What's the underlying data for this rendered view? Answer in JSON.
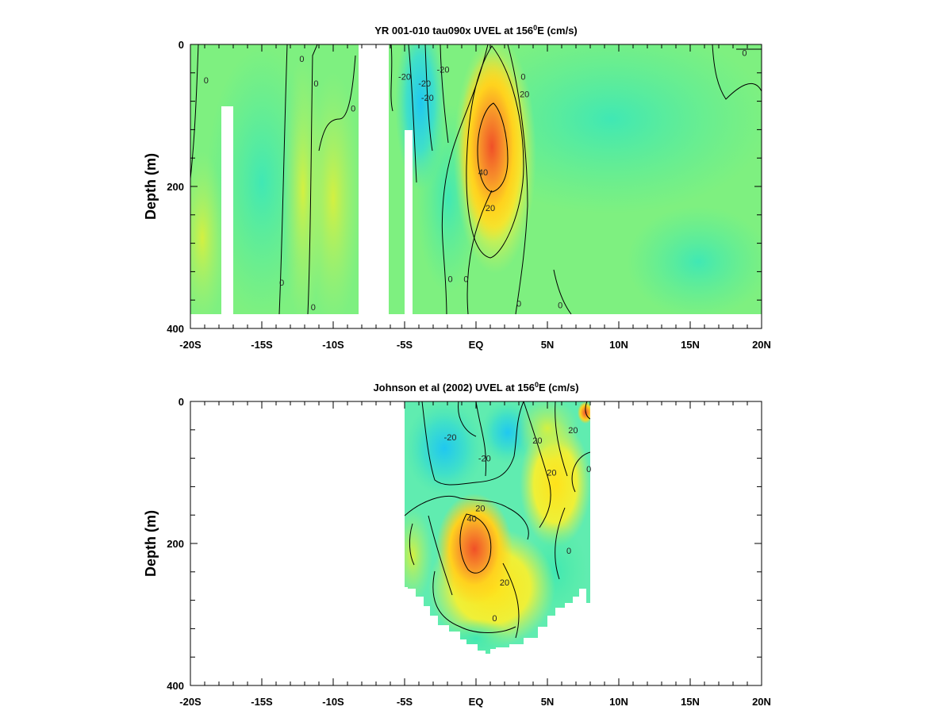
{
  "chart_data": [
    {
      "type": "heatmap",
      "title_prefix": "YR 001-010 tau090x UVEL at 156",
      "title_sup": "0",
      "title_suffix": "E (cm/s)",
      "ylabel": "Depth (m)",
      "xlim": [
        -20,
        20
      ],
      "ylim": [
        0,
        400
      ],
      "x_ticks": [
        "-20S",
        "-15S",
        "-10S",
        "-5S",
        "EQ",
        "5N",
        "10N",
        "15N",
        "20N"
      ],
      "x_tick_values": [
        -20,
        -15,
        -10,
        -5,
        0,
        5,
        10,
        15,
        20
      ],
      "y_ticks": [
        "0",
        "200",
        "400"
      ],
      "y_tick_values": [
        0,
        200,
        400
      ],
      "data_depth_max": 380,
      "gaps_lat": [
        [
          -17.8,
          -17.0
        ],
        [
          -8.2,
          -6.0
        ],
        [
          -4.8,
          -4.2
        ]
      ],
      "gaps_depth_start": [
        90,
        0,
        120
      ],
      "contour_labels": [
        {
          "text": "0",
          "lat": -18.9,
          "depth": 50
        },
        {
          "text": "0",
          "lat": -12.2,
          "depth": 20
        },
        {
          "text": "0",
          "lat": -11.2,
          "depth": 55
        },
        {
          "text": "0",
          "lat": -8.6,
          "depth": 90
        },
        {
          "text": "0",
          "lat": -13.6,
          "depth": 335
        },
        {
          "text": "0",
          "lat": -11.4,
          "depth": 370
        },
        {
          "text": "-20",
          "lat": -5.0,
          "depth": 45
        },
        {
          "text": "-20",
          "lat": -3.6,
          "depth": 55
        },
        {
          "text": "-20",
          "lat": -3.4,
          "depth": 75
        },
        {
          "text": "-20",
          "lat": -2.3,
          "depth": 35
        },
        {
          "text": "20",
          "lat": 1.0,
          "depth": 230
        },
        {
          "text": "20",
          "lat": 3.4,
          "depth": 70
        },
        {
          "text": "40",
          "lat": 0.5,
          "depth": 180
        },
        {
          "text": "0",
          "lat": 3.3,
          "depth": 45
        },
        {
          "text": "0",
          "lat": -1.8,
          "depth": 330
        },
        {
          "text": "0",
          "lat": -0.7,
          "depth": 330
        },
        {
          "text": "0",
          "lat": 3.0,
          "depth": 365
        },
        {
          "text": "0",
          "lat": 5.9,
          "depth": 367
        },
        {
          "text": "0",
          "lat": 18.8,
          "depth": 12
        }
      ]
    },
    {
      "type": "heatmap",
      "title_prefix": "Johnson et al (2002) UVEL at 156",
      "title_sup": "0",
      "title_suffix": "E (cm/s)",
      "ylabel": "Depth (m)",
      "xlim": [
        -20,
        20
      ],
      "ylim": [
        0,
        400
      ],
      "x_ticks": [
        "-20S",
        "-15S",
        "-10S",
        "-5S",
        "EQ",
        "5N",
        "10N",
        "15N",
        "20N"
      ],
      "x_tick_values": [
        -20,
        -15,
        -10,
        -5,
        0,
        5,
        10,
        15,
        20
      ],
      "y_ticks": [
        "0",
        "200",
        "400"
      ],
      "y_tick_values": [
        0,
        200,
        400
      ],
      "data_lat_range": [
        -5.0,
        8.0
      ],
      "bottom_depth_lats": [
        -5.0,
        -4.0,
        -3.0,
        -2.0,
        -1.0,
        0.0,
        1.0,
        2.0,
        3.0,
        4.0,
        5.0,
        6.0,
        7.0,
        8.0
      ],
      "bottom_depth_values": [
        265,
        270,
        305,
        320,
        330,
        345,
        355,
        340,
        330,
        305,
        285,
        280,
        270,
        275
      ],
      "contour_labels": [
        {
          "text": "-20",
          "lat": -1.8,
          "depth": 50
        },
        {
          "text": "-20",
          "lat": 0.6,
          "depth": 80
        },
        {
          "text": "20",
          "lat": 0.3,
          "depth": 150
        },
        {
          "text": "40",
          "lat": -0.3,
          "depth": 165
        },
        {
          "text": "20",
          "lat": 4.3,
          "depth": 55
        },
        {
          "text": "20",
          "lat": 6.8,
          "depth": 40
        },
        {
          "text": "20",
          "lat": 5.3,
          "depth": 100
        },
        {
          "text": "20",
          "lat": 2.0,
          "depth": 255
        },
        {
          "text": "0",
          "lat": 7.9,
          "depth": 95
        },
        {
          "text": "0",
          "lat": 6.5,
          "depth": 210
        },
        {
          "text": "0",
          "lat": 1.3,
          "depth": 305
        }
      ]
    }
  ]
}
